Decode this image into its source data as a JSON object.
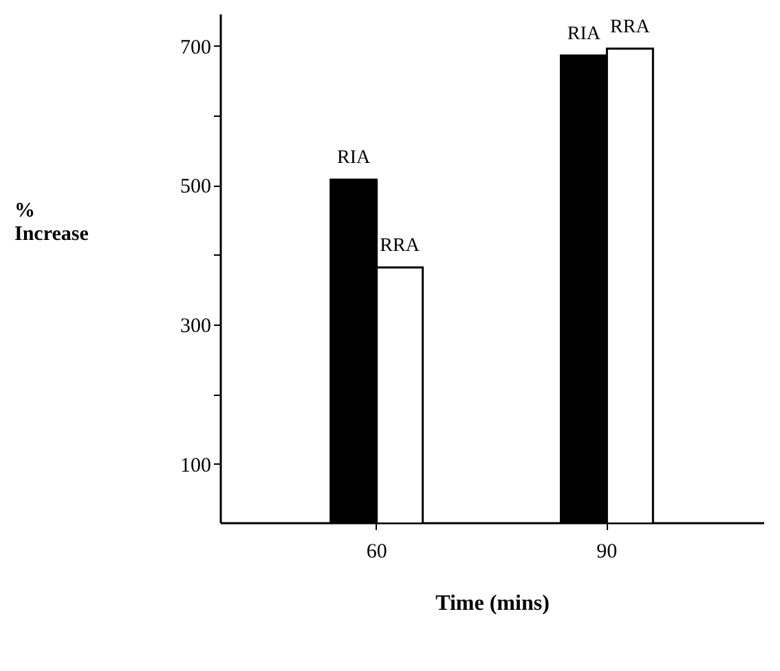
{
  "chart_data": {
    "type": "bar",
    "xlabel": "Time (mins)",
    "ylabel": "% Increase",
    "categories": [
      "60",
      "90"
    ],
    "series": [
      {
        "name": "RIA",
        "color": "#000000",
        "values": [
          508,
          686
        ]
      },
      {
        "name": "RRA",
        "color": "#ffffff",
        "values": [
          382,
          696
        ]
      }
    ],
    "ylim": [
      16,
      746
    ],
    "yticks": [
      100,
      {
        "value": 200,
        "label": null
      },
      300,
      {
        "value": 400,
        "label": null
      },
      500,
      {
        "value": 600,
        "label": null
      },
      700
    ],
    "grid": false,
    "legend": false
  }
}
